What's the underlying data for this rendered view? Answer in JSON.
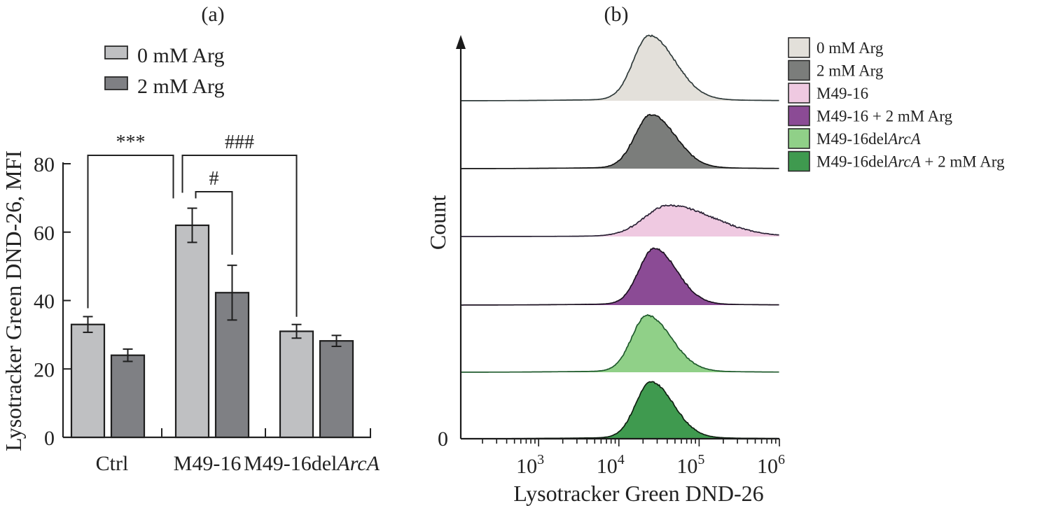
{
  "chart_data": [
    {
      "panel": "(a)",
      "type": "bar",
      "title": "",
      "xlabel": "",
      "ylabel": "Lysotracker Green DND-26, MFI",
      "ylim": [
        0,
        80
      ],
      "yticks": [
        0,
        20,
        40,
        60,
        80
      ],
      "categories": [
        {
          "label": "Ctrl",
          "italic_suffix": ""
        },
        {
          "label": "M49-16",
          "italic_suffix": ""
        },
        {
          "label": "M49-16del",
          "italic_suffix": "ArcA"
        }
      ],
      "series": [
        {
          "name": "0 mM Arg",
          "color": "#bfc0c2",
          "values": [
            33,
            62,
            31
          ],
          "errors": [
            2.3,
            5.0,
            2.0
          ]
        },
        {
          "name": "2 mM Arg",
          "color": "#7f8084",
          "values": [
            24,
            42.3,
            28.2
          ],
          "errors": [
            1.8,
            8.0,
            1.6
          ]
        }
      ],
      "legend": {
        "position": "top",
        "entries": [
          "0 mM Arg",
          "2 mM Arg"
        ]
      },
      "significance": [
        {
          "label": "***",
          "from": {
            "category": 0,
            "series": 0
          },
          "to": {
            "category": 1,
            "series": 0
          }
        },
        {
          "label": "###",
          "from": {
            "category": 1,
            "series": 0
          },
          "to": {
            "category": 2,
            "series": 0
          }
        },
        {
          "label": "#",
          "from": {
            "category": 1,
            "series": 0
          },
          "to": {
            "category": 1,
            "series": 1
          }
        }
      ]
    },
    {
      "panel": "(b)",
      "type": "area",
      "subtype": "stacked-offset flow cytometry histograms",
      "xlabel": "Lysotracker Green DND-26",
      "ylabel": "Count",
      "xscale": "log",
      "xlim_log10": [
        2.03,
        6.0
      ],
      "xticks": [
        {
          "base": "10",
          "exp": "3"
        },
        {
          "base": "10",
          "exp": "4"
        },
        {
          "base": "10",
          "exp": "5"
        },
        {
          "base": "10",
          "exp": "6"
        }
      ],
      "ytick_label": "0",
      "legend": {
        "position": "right"
      },
      "series": [
        {
          "name": "0 mM Arg",
          "italic": "",
          "suffix": "",
          "fill": "#e3e0da",
          "stroke": "#2f3a3a",
          "peak_log10": 4.38,
          "sigma_left": 0.2,
          "sigma_right": 0.32,
          "peak_rel": 0.94
        },
        {
          "name": "2 mM Arg",
          "italic": "",
          "suffix": "",
          "fill": "#7b7d7b",
          "stroke": "#111",
          "peak_log10": 4.4,
          "sigma_left": 0.2,
          "sigma_right": 0.3,
          "peak_rel": 0.78
        },
        {
          "name": "M49-16",
          "italic": "",
          "suffix": "",
          "fill": "#efc9e1",
          "stroke": "#2a2235",
          "peak_log10": 4.62,
          "sigma_left": 0.3,
          "sigma_right": 0.55,
          "peak_rel": 0.45
        },
        {
          "name": "M49-16 + 2 mM Arg",
          "italic": "",
          "suffix": "",
          "fill": "#8b4b95",
          "stroke": "#1b1020",
          "peak_log10": 4.44,
          "sigma_left": 0.19,
          "sigma_right": 0.28,
          "peak_rel": 0.82
        },
        {
          "name": "M49-16del",
          "italic": "ArcA",
          "suffix": "",
          "fill": "#90d088",
          "stroke": "#1f5a2c",
          "peak_log10": 4.35,
          "sigma_left": 0.19,
          "sigma_right": 0.3,
          "peak_rel": 0.82
        },
        {
          "name": "M49-16del",
          "italic": "ArcA",
          "suffix": " + 2 mM Arg",
          "fill": "#3f9a4f",
          "stroke": "#0e1f10",
          "peak_log10": 4.4,
          "sigma_left": 0.19,
          "sigma_right": 0.28,
          "peak_rel": 0.82
        }
      ]
    }
  ]
}
